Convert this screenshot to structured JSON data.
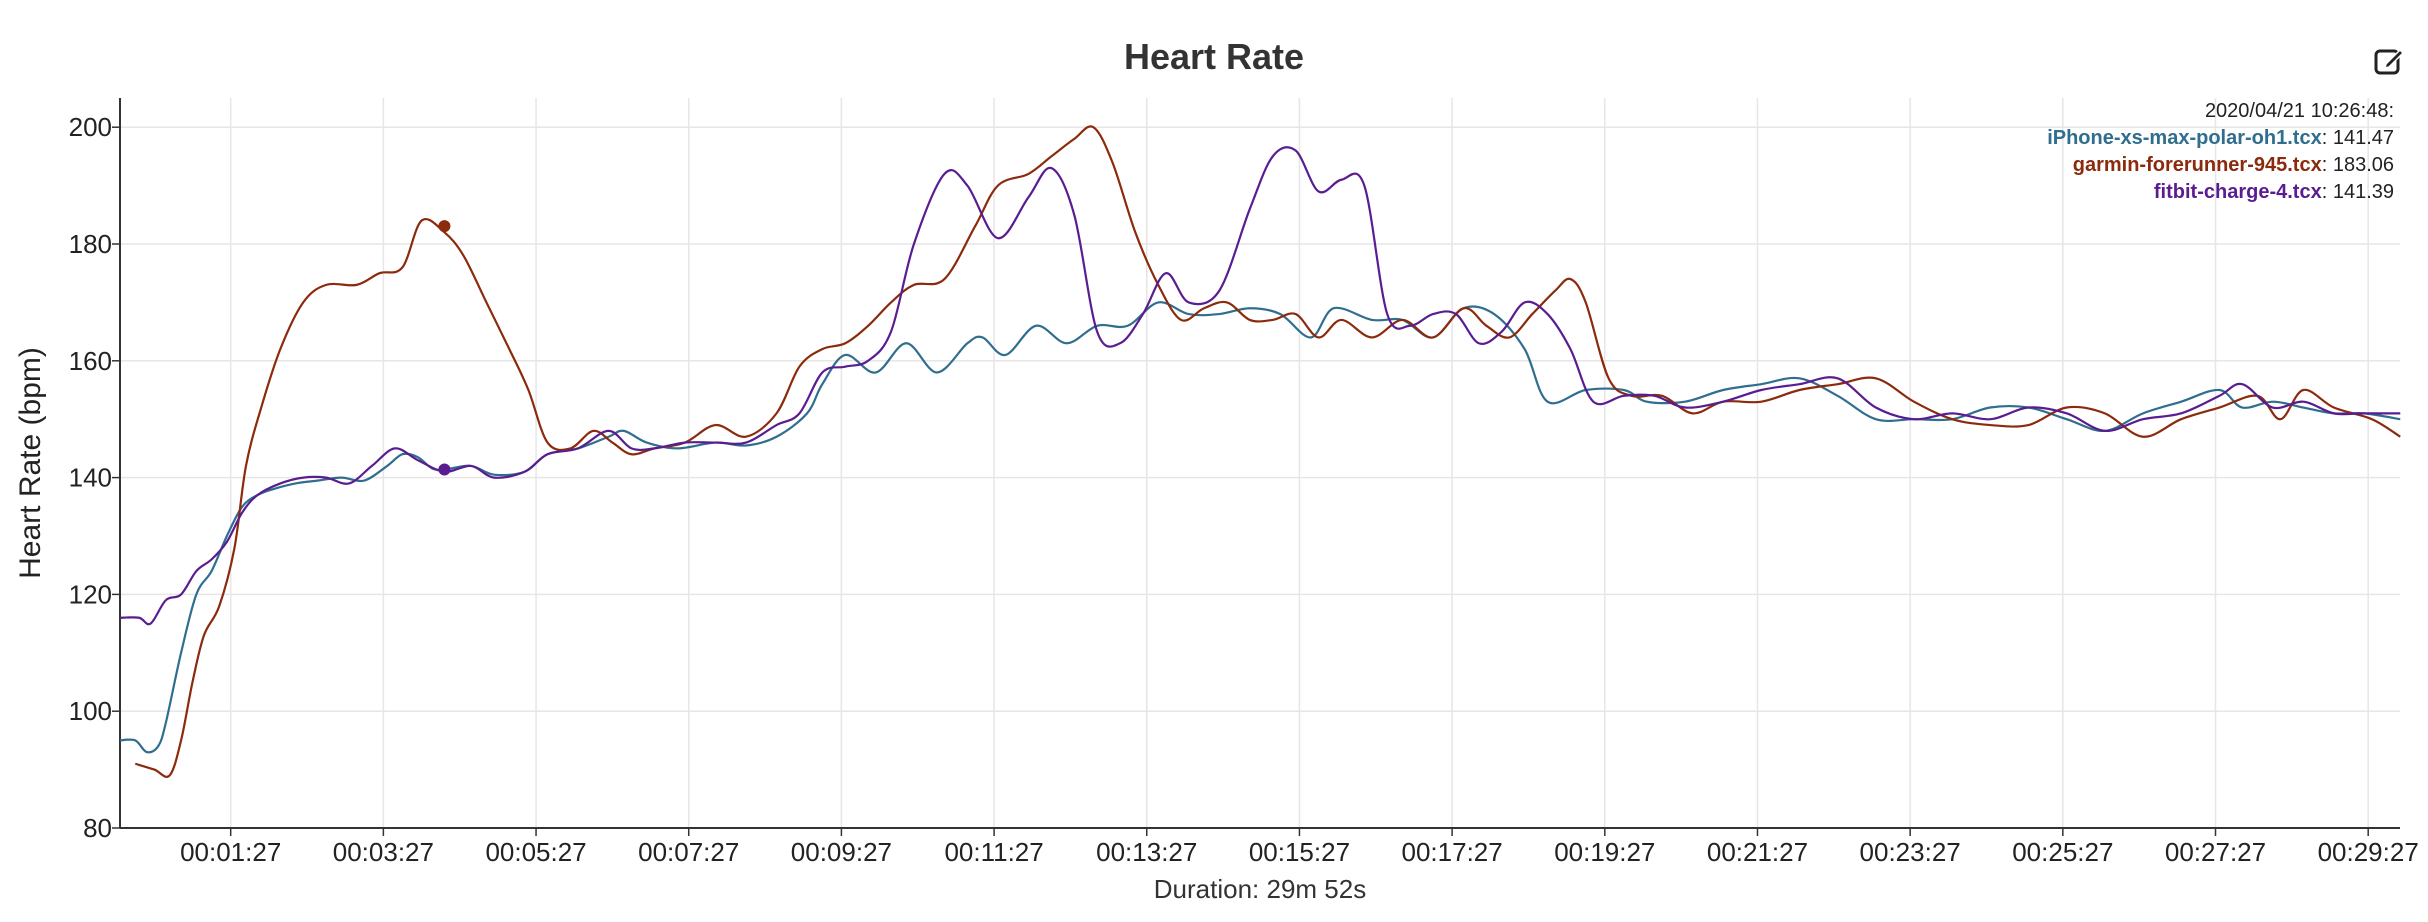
{
  "title": "Heart Rate",
  "edit_icon": "edit-icon",
  "legend": {
    "timestamp": "2020/04/21 10:26:48:",
    "entries": [
      {
        "name": "iPhone-xs-max-polar-oh1.tcx",
        "value": "141.47",
        "color": "#2f6e8e"
      },
      {
        "name": "garmin-forerunner-945.tcx",
        "value": "183.06",
        "color": "#8b2a0c"
      },
      {
        "name": "fitbit-charge-4.tcx",
        "value": "141.39",
        "color": "#5a1d91"
      }
    ]
  },
  "chart_data": {
    "type": "line",
    "title": "Heart Rate",
    "ylabel": "Heart Rate (bpm)",
    "xlabel": "Duration: 29m 52s",
    "ylim": [
      80,
      205
    ],
    "xlim": [
      0,
      29.8667
    ],
    "yticks": [
      80,
      100,
      120,
      140,
      160,
      180,
      200
    ],
    "xticks": [
      1.45,
      3.45,
      5.45,
      7.45,
      9.45,
      11.45,
      13.45,
      15.45,
      17.45,
      19.45,
      21.45,
      23.45,
      25.45,
      27.45,
      29.45
    ],
    "xtick_labels": [
      "00:01:27",
      "00:03:27",
      "00:05:27",
      "00:07:27",
      "00:09:27",
      "00:11:27",
      "00:13:27",
      "00:15:27",
      "00:17:27",
      "00:19:27",
      "00:21:27",
      "00:23:27",
      "00:25:27",
      "00:27:27",
      "00:29:27"
    ],
    "grid": true,
    "x_unit": "minutes",
    "series": [
      {
        "name": "iPhone-xs-max-polar-oh1.tcx",
        "color": "#2f6e8e",
        "points": [
          [
            0,
            95
          ],
          [
            0.2,
            95
          ],
          [
            0.35,
            93
          ],
          [
            0.5,
            94
          ],
          [
            0.6,
            98
          ],
          [
            0.8,
            110
          ],
          [
            1,
            120
          ],
          [
            1.2,
            124
          ],
          [
            1.4,
            130
          ],
          [
            1.6,
            135
          ],
          [
            1.8,
            137
          ],
          [
            2,
            138
          ],
          [
            2.3,
            139
          ],
          [
            2.6,
            139.5
          ],
          [
            2.9,
            140
          ],
          [
            3.2,
            139.5
          ],
          [
            3.5,
            142
          ],
          [
            3.7,
            144
          ],
          [
            3.9,
            143.5
          ],
          [
            4.1,
            141.5
          ],
          [
            4.3,
            141.5
          ],
          [
            4.6,
            142
          ],
          [
            4.9,
            140.5
          ],
          [
            5.3,
            141
          ],
          [
            5.6,
            144
          ],
          [
            6,
            145
          ],
          [
            6.4,
            147
          ],
          [
            6.6,
            148
          ],
          [
            6.9,
            146
          ],
          [
            7.3,
            145
          ],
          [
            7.8,
            146
          ],
          [
            8.2,
            145.5
          ],
          [
            8.6,
            147
          ],
          [
            9,
            151
          ],
          [
            9.2,
            156
          ],
          [
            9.5,
            161
          ],
          [
            9.9,
            158
          ],
          [
            10.3,
            163
          ],
          [
            10.7,
            158
          ],
          [
            11.1,
            163
          ],
          [
            11.3,
            164
          ],
          [
            11.6,
            161
          ],
          [
            12,
            166
          ],
          [
            12.4,
            163
          ],
          [
            12.8,
            166
          ],
          [
            13.2,
            166
          ],
          [
            13.6,
            170
          ],
          [
            14,
            168
          ],
          [
            14.4,
            168
          ],
          [
            14.8,
            169
          ],
          [
            15.2,
            168
          ],
          [
            15.6,
            164
          ],
          [
            15.9,
            169
          ],
          [
            16.4,
            167
          ],
          [
            16.8,
            167
          ],
          [
            17.2,
            164
          ],
          [
            17.6,
            169
          ],
          [
            18,
            168
          ],
          [
            18.4,
            162
          ],
          [
            18.7,
            153
          ],
          [
            19.2,
            155
          ],
          [
            19.7,
            155
          ],
          [
            20,
            153
          ],
          [
            20.5,
            153
          ],
          [
            21,
            155
          ],
          [
            21.5,
            156
          ],
          [
            22,
            157
          ],
          [
            22.5,
            154
          ],
          [
            23,
            150
          ],
          [
            23.5,
            150
          ],
          [
            24,
            150
          ],
          [
            24.5,
            152
          ],
          [
            25,
            152
          ],
          [
            25.5,
            150
          ],
          [
            26,
            148
          ],
          [
            26.5,
            151
          ],
          [
            27,
            153
          ],
          [
            27.5,
            155
          ],
          [
            27.8,
            152
          ],
          [
            28.2,
            153
          ],
          [
            28.6,
            152
          ],
          [
            29,
            151
          ],
          [
            29.4,
            151
          ],
          [
            29.87,
            150
          ]
        ]
      },
      {
        "name": "garmin-forerunner-945.tcx",
        "color": "#8b2a0c",
        "points": [
          [
            0.2,
            91
          ],
          [
            0.45,
            90
          ],
          [
            0.65,
            89
          ],
          [
            0.8,
            95
          ],
          [
            0.95,
            105
          ],
          [
            1.1,
            113
          ],
          [
            1.3,
            118
          ],
          [
            1.5,
            128
          ],
          [
            1.65,
            142
          ],
          [
            1.85,
            152
          ],
          [
            2.1,
            162
          ],
          [
            2.4,
            170
          ],
          [
            2.7,
            173
          ],
          [
            3.1,
            173
          ],
          [
            3.4,
            175
          ],
          [
            3.7,
            176
          ],
          [
            3.95,
            184
          ],
          [
            4.25,
            182
          ],
          [
            4.5,
            178
          ],
          [
            4.8,
            170
          ],
          [
            5.1,
            162
          ],
          [
            5.35,
            155
          ],
          [
            5.6,
            146
          ],
          [
            5.9,
            145
          ],
          [
            6.2,
            148
          ],
          [
            6.45,
            146
          ],
          [
            6.7,
            144
          ],
          [
            7,
            145
          ],
          [
            7.4,
            146
          ],
          [
            7.8,
            149
          ],
          [
            8.2,
            147
          ],
          [
            8.6,
            151
          ],
          [
            8.9,
            159
          ],
          [
            9.2,
            162
          ],
          [
            9.5,
            163
          ],
          [
            9.8,
            166
          ],
          [
            10.1,
            170
          ],
          [
            10.4,
            173
          ],
          [
            10.8,
            174
          ],
          [
            11.2,
            183
          ],
          [
            11.5,
            190
          ],
          [
            11.9,
            192
          ],
          [
            12.2,
            195
          ],
          [
            12.5,
            198
          ],
          [
            12.75,
            200
          ],
          [
            13,
            194
          ],
          [
            13.3,
            182
          ],
          [
            13.6,
            173
          ],
          [
            13.9,
            167
          ],
          [
            14.2,
            169
          ],
          [
            14.5,
            170
          ],
          [
            14.8,
            167
          ],
          [
            15.1,
            167
          ],
          [
            15.4,
            168
          ],
          [
            15.7,
            164
          ],
          [
            16,
            167
          ],
          [
            16.4,
            164
          ],
          [
            16.8,
            167
          ],
          [
            17.2,
            164
          ],
          [
            17.6,
            169
          ],
          [
            17.9,
            166
          ],
          [
            18.2,
            164
          ],
          [
            18.5,
            168
          ],
          [
            18.8,
            172
          ],
          [
            19,
            174
          ],
          [
            19.2,
            170
          ],
          [
            19.5,
            157
          ],
          [
            19.8,
            154
          ],
          [
            20.2,
            154
          ],
          [
            20.6,
            151
          ],
          [
            21,
            153
          ],
          [
            21.5,
            153
          ],
          [
            22,
            155
          ],
          [
            22.5,
            156
          ],
          [
            23,
            157
          ],
          [
            23.5,
            153
          ],
          [
            24,
            150
          ],
          [
            24.5,
            149
          ],
          [
            25,
            149
          ],
          [
            25.5,
            152
          ],
          [
            26,
            151
          ],
          [
            26.5,
            147
          ],
          [
            27,
            150
          ],
          [
            27.5,
            152
          ],
          [
            28,
            154
          ],
          [
            28.3,
            150
          ],
          [
            28.6,
            155
          ],
          [
            29,
            152
          ],
          [
            29.5,
            150
          ],
          [
            29.87,
            147
          ]
        ]
      },
      {
        "name": "fitbit-charge-4.tcx",
        "color": "#5a1d91",
        "points": [
          [
            0,
            116
          ],
          [
            0.25,
            116
          ],
          [
            0.4,
            115
          ],
          [
            0.6,
            119
          ],
          [
            0.8,
            120
          ],
          [
            1,
            124
          ],
          [
            1.2,
            126
          ],
          [
            1.4,
            129
          ],
          [
            1.6,
            134
          ],
          [
            1.8,
            137
          ],
          [
            2.1,
            139
          ],
          [
            2.4,
            140
          ],
          [
            2.7,
            140
          ],
          [
            3,
            139
          ],
          [
            3.3,
            142
          ],
          [
            3.6,
            145
          ],
          [
            3.9,
            143
          ],
          [
            4.25,
            141
          ],
          [
            4.6,
            142
          ],
          [
            4.9,
            140
          ],
          [
            5.3,
            141
          ],
          [
            5.6,
            144
          ],
          [
            6,
            145
          ],
          [
            6.4,
            148
          ],
          [
            6.7,
            145
          ],
          [
            7,
            145
          ],
          [
            7.4,
            146
          ],
          [
            7.8,
            146
          ],
          [
            8.2,
            146
          ],
          [
            8.6,
            149
          ],
          [
            8.9,
            151
          ],
          [
            9.2,
            158
          ],
          [
            9.5,
            159
          ],
          [
            9.8,
            160
          ],
          [
            10.1,
            165
          ],
          [
            10.4,
            180
          ],
          [
            10.8,
            192
          ],
          [
            11.1,
            190
          ],
          [
            11.5,
            181
          ],
          [
            11.9,
            188
          ],
          [
            12.2,
            193
          ],
          [
            12.5,
            185
          ],
          [
            12.8,
            165
          ],
          [
            13.1,
            163
          ],
          [
            13.4,
            168
          ],
          [
            13.7,
            175
          ],
          [
            14,
            170
          ],
          [
            14.4,
            172
          ],
          [
            14.8,
            186
          ],
          [
            15.1,
            195
          ],
          [
            15.4,
            196
          ],
          [
            15.7,
            189
          ],
          [
            16,
            191
          ],
          [
            16.3,
            190
          ],
          [
            16.6,
            168
          ],
          [
            16.9,
            166
          ],
          [
            17.2,
            168
          ],
          [
            17.5,
            168
          ],
          [
            17.8,
            163
          ],
          [
            18.1,
            165
          ],
          [
            18.4,
            170
          ],
          [
            18.7,
            168
          ],
          [
            19,
            162
          ],
          [
            19.3,
            153
          ],
          [
            19.7,
            154
          ],
          [
            20.1,
            154
          ],
          [
            20.5,
            152
          ],
          [
            21,
            153
          ],
          [
            21.5,
            155
          ],
          [
            22,
            156
          ],
          [
            22.5,
            157
          ],
          [
            23,
            152
          ],
          [
            23.5,
            150
          ],
          [
            24,
            151
          ],
          [
            24.5,
            150
          ],
          [
            25,
            152
          ],
          [
            25.5,
            151
          ],
          [
            26,
            148
          ],
          [
            26.5,
            150
          ],
          [
            27,
            151
          ],
          [
            27.5,
            154
          ],
          [
            27.8,
            156
          ],
          [
            28.2,
            152
          ],
          [
            28.6,
            153
          ],
          [
            29,
            151
          ],
          [
            29.4,
            151
          ],
          [
            29.87,
            151
          ]
        ]
      }
    ],
    "markers": [
      {
        "series": "garmin-forerunner-945.tcx",
        "x": 4.25,
        "y": 183.06
      },
      {
        "series": "fitbit-charge-4.tcx",
        "x": 4.25,
        "y": 141.39
      }
    ]
  }
}
